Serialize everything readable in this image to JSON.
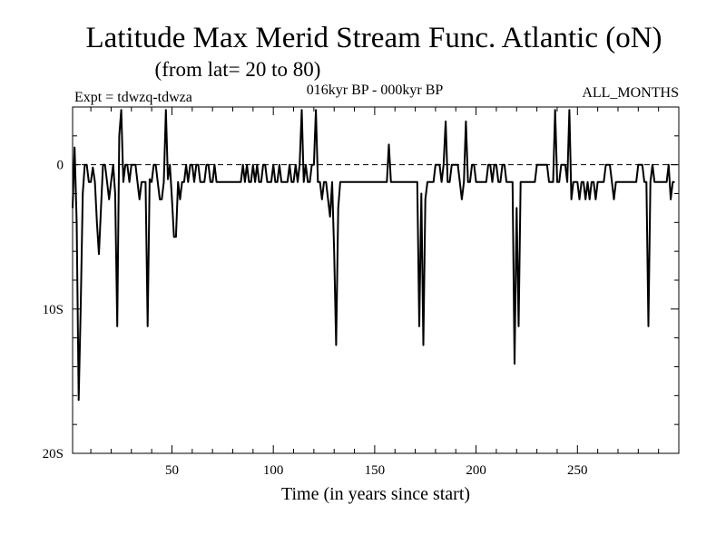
{
  "chart_data": {
    "type": "line",
    "title": "Latitude Max Merid Stream Func. Atlantic (oN)",
    "subtitle": "(from lat= 20 to 80)",
    "annotations": {
      "left": "Expt = tdwzq-tdwza",
      "center": "016kyr BP - 000kyr BP",
      "right": "ALL_MONTHS"
    },
    "xlabel": "Time (in years since start)",
    "ylabel": "",
    "xlim": [
      1,
      300
    ],
    "ylim": [
      -20,
      4
    ],
    "x_ticks": [
      50,
      100,
      150,
      200,
      250
    ],
    "x_tick_labels": [
      "50",
      "100",
      "150",
      "200",
      "250"
    ],
    "y_ticks": [
      0,
      -10,
      -20
    ],
    "y_tick_labels": [
      "0",
      "10S",
      "20S"
    ],
    "reference_line": 0,
    "grid": false,
    "series": [
      {
        "color": "#000000",
        "points": [
          [
            1,
            -3
          ],
          [
            2,
            1.2
          ],
          [
            3,
            -4
          ],
          [
            4,
            -16.3
          ],
          [
            5,
            -10
          ],
          [
            6,
            -2
          ],
          [
            7,
            0
          ],
          [
            8,
            0
          ],
          [
            9,
            -1.2
          ],
          [
            10,
            -1.2
          ],
          [
            11,
            -0.2
          ],
          [
            12,
            -1.2
          ],
          [
            13,
            -4
          ],
          [
            14,
            -6.2
          ],
          [
            15,
            -3
          ],
          [
            16,
            0
          ],
          [
            17,
            0
          ],
          [
            18,
            -1.2
          ],
          [
            19,
            -2.4
          ],
          [
            20,
            -1.2
          ],
          [
            21,
            0
          ],
          [
            22,
            -2
          ],
          [
            23,
            -11.2
          ],
          [
            24,
            2
          ],
          [
            25,
            3.8
          ],
          [
            26,
            -1.2
          ],
          [
            27,
            0
          ],
          [
            28,
            0
          ],
          [
            29,
            -1.2
          ],
          [
            30,
            0
          ],
          [
            31,
            0
          ],
          [
            32,
            0
          ],
          [
            33,
            -1.2
          ],
          [
            34,
            -2.4
          ],
          [
            35,
            -1.2
          ],
          [
            36,
            -1.2
          ],
          [
            37,
            -1.2
          ],
          [
            38,
            -11.2
          ],
          [
            39,
            -1
          ],
          [
            40,
            -1.2
          ],
          [
            41,
            0
          ],
          [
            42,
            0
          ],
          [
            43,
            -1.2
          ],
          [
            44,
            -2.4
          ],
          [
            45,
            -2.4
          ],
          [
            46,
            -1.2
          ],
          [
            47,
            3.8
          ],
          [
            48,
            -1
          ],
          [
            49,
            0
          ],
          [
            50,
            -2.4
          ],
          [
            51,
            -5
          ],
          [
            52,
            -5
          ],
          [
            53,
            -1.2
          ],
          [
            54,
            -2.4
          ],
          [
            55,
            -1.2
          ],
          [
            56,
            -1.2
          ],
          [
            57,
            0
          ],
          [
            58,
            -1.2
          ],
          [
            59,
            0
          ],
          [
            60,
            0
          ],
          [
            61,
            -1.2
          ],
          [
            62,
            0
          ],
          [
            63,
            0
          ],
          [
            64,
            -1.2
          ],
          [
            65,
            -1.2
          ],
          [
            66,
            -1.2
          ],
          [
            67,
            0
          ],
          [
            68,
            0
          ],
          [
            69,
            -1.2
          ],
          [
            70,
            -1.2
          ],
          [
            71,
            0
          ],
          [
            72,
            -1.2
          ],
          [
            73,
            -1.2
          ],
          [
            74,
            -1.2
          ],
          [
            75,
            -1.2
          ],
          [
            76,
            -1.2
          ],
          [
            77,
            -1.2
          ],
          [
            78,
            -1.2
          ],
          [
            79,
            -1.2
          ],
          [
            80,
            -1.2
          ],
          [
            81,
            -1.2
          ],
          [
            82,
            -1.2
          ],
          [
            83,
            -1.2
          ],
          [
            84,
            -1.2
          ],
          [
            85,
            0
          ],
          [
            86,
            -1.2
          ],
          [
            87,
            0
          ],
          [
            88,
            -1.2
          ],
          [
            89,
            -1.2
          ],
          [
            90,
            0
          ],
          [
            91,
            -1.2
          ],
          [
            92,
            0
          ],
          [
            93,
            -1.2
          ],
          [
            94,
            -1.2
          ],
          [
            95,
            0
          ],
          [
            96,
            0
          ],
          [
            97,
            -1.2
          ],
          [
            98,
            -1.2
          ],
          [
            99,
            -1.2
          ],
          [
            100,
            0
          ],
          [
            101,
            -1.2
          ],
          [
            102,
            -1.2
          ],
          [
            103,
            0
          ],
          [
            104,
            -1.2
          ],
          [
            105,
            -1.2
          ],
          [
            106,
            -1.2
          ],
          [
            107,
            -1.2
          ],
          [
            108,
            0
          ],
          [
            109,
            -1.2
          ],
          [
            110,
            -1.2
          ],
          [
            111,
            0
          ],
          [
            112,
            -1.2
          ],
          [
            113,
            0
          ],
          [
            114,
            3.8
          ],
          [
            115,
            -1.2
          ],
          [
            116,
            0
          ],
          [
            117,
            -1.2
          ],
          [
            118,
            -1.2
          ],
          [
            119,
            0
          ],
          [
            120,
            0
          ],
          [
            121,
            3.8
          ],
          [
            122,
            -1.2
          ],
          [
            123,
            -1.2
          ],
          [
            124,
            -2.4
          ],
          [
            125,
            -1.2
          ],
          [
            126,
            -1.2
          ],
          [
            127,
            -2.4
          ],
          [
            128,
            -3.6
          ],
          [
            129,
            -1.2
          ],
          [
            130,
            -6
          ],
          [
            131,
            -12.5
          ],
          [
            132,
            -3
          ],
          [
            133,
            -1.2
          ],
          [
            134,
            -1.2
          ],
          [
            135,
            -1.2
          ],
          [
            136,
            -1.2
          ],
          [
            137,
            -1.2
          ],
          [
            138,
            -1.2
          ],
          [
            139,
            -1.2
          ],
          [
            140,
            -1.2
          ],
          [
            141,
            -1.2
          ],
          [
            142,
            -1.2
          ],
          [
            143,
            -1.2
          ],
          [
            144,
            -1.2
          ],
          [
            145,
            -1.2
          ],
          [
            146,
            -1.2
          ],
          [
            147,
            -1.2
          ],
          [
            148,
            -1.2
          ],
          [
            149,
            -1.2
          ],
          [
            150,
            -1.2
          ],
          [
            151,
            -1.2
          ],
          [
            152,
            -1.2
          ],
          [
            153,
            -1.2
          ],
          [
            154,
            -1.2
          ],
          [
            155,
            -1.2
          ],
          [
            156,
            -1.2
          ],
          [
            157,
            1.4
          ],
          [
            158,
            -1.2
          ],
          [
            159,
            -1.2
          ],
          [
            160,
            -1.2
          ],
          [
            161,
            -1.2
          ],
          [
            162,
            -1.2
          ],
          [
            163,
            -1.2
          ],
          [
            164,
            -1.2
          ],
          [
            165,
            -1.2
          ],
          [
            166,
            -1.2
          ],
          [
            167,
            -1.2
          ],
          [
            168,
            -1.2
          ],
          [
            169,
            -1.2
          ],
          [
            170,
            -1.2
          ],
          [
            171,
            -1.2
          ],
          [
            172,
            -11.2
          ],
          [
            173,
            -2
          ],
          [
            174,
            -12.5
          ],
          [
            175,
            -2.4
          ],
          [
            176,
            -1.2
          ],
          [
            177,
            -1.2
          ],
          [
            178,
            -1.2
          ],
          [
            179,
            -1.2
          ],
          [
            180,
            0
          ],
          [
            181,
            0
          ],
          [
            182,
            0
          ],
          [
            183,
            -1.2
          ],
          [
            184,
            0
          ],
          [
            185,
            3
          ],
          [
            186,
            -1.2
          ],
          [
            187,
            -1.2
          ],
          [
            188,
            0
          ],
          [
            189,
            0
          ],
          [
            190,
            0
          ],
          [
            191,
            0
          ],
          [
            192,
            -1.2
          ],
          [
            193,
            -2.4
          ],
          [
            194,
            -1.2
          ],
          [
            195,
            3
          ],
          [
            196,
            -1.2
          ],
          [
            197,
            -1.2
          ],
          [
            198,
            0
          ],
          [
            199,
            0
          ],
          [
            200,
            -1.2
          ],
          [
            201,
            -1.2
          ],
          [
            202,
            -1.2
          ],
          [
            203,
            -1.2
          ],
          [
            204,
            -1.2
          ],
          [
            205,
            -1.2
          ],
          [
            206,
            0
          ],
          [
            207,
            0
          ],
          [
            208,
            -1.2
          ],
          [
            209,
            0
          ],
          [
            210,
            0
          ],
          [
            211,
            -1.2
          ],
          [
            212,
            -1.2
          ],
          [
            213,
            0
          ],
          [
            214,
            0
          ],
          [
            215,
            -1.2
          ],
          [
            216,
            -1.2
          ],
          [
            217,
            -1.2
          ],
          [
            218,
            -1.2
          ],
          [
            219,
            -13.8
          ],
          [
            220,
            -3
          ],
          [
            221,
            -11.2
          ],
          [
            222,
            -1.2
          ],
          [
            223,
            -1.2
          ],
          [
            224,
            -1.2
          ],
          [
            225,
            -1.2
          ],
          [
            226,
            -1.2
          ],
          [
            227,
            -1.2
          ],
          [
            228,
            -1.2
          ],
          [
            229,
            -1.2
          ],
          [
            230,
            0
          ],
          [
            231,
            0
          ],
          [
            232,
            0
          ],
          [
            233,
            0
          ],
          [
            234,
            0
          ],
          [
            235,
            0
          ],
          [
            236,
            -1.2
          ],
          [
            237,
            -1.2
          ],
          [
            238,
            -1.2
          ],
          [
            239,
            3.8
          ],
          [
            240,
            -1.2
          ],
          [
            241,
            -1.2
          ],
          [
            242,
            0
          ],
          [
            243,
            0
          ],
          [
            244,
            0
          ],
          [
            245,
            -1.2
          ],
          [
            246,
            3.8
          ],
          [
            247,
            -2.4
          ],
          [
            248,
            -1.2
          ],
          [
            249,
            -1.2
          ],
          [
            250,
            -1.2
          ],
          [
            251,
            -2.4
          ],
          [
            252,
            -1.2
          ],
          [
            253,
            -1.2
          ],
          [
            254,
            -2.4
          ],
          [
            255,
            -1.2
          ],
          [
            256,
            -2.4
          ],
          [
            257,
            -1.2
          ],
          [
            258,
            -1.2
          ],
          [
            259,
            -2.4
          ],
          [
            260,
            -1.2
          ],
          [
            261,
            -1.2
          ],
          [
            262,
            -1.2
          ],
          [
            263,
            -1.2
          ],
          [
            264,
            0
          ],
          [
            265,
            0
          ],
          [
            266,
            0
          ],
          [
            267,
            -1.2
          ],
          [
            268,
            -2.4
          ],
          [
            269,
            -1.2
          ],
          [
            270,
            -1.2
          ],
          [
            271,
            -1.2
          ],
          [
            272,
            -1.2
          ],
          [
            273,
            -1.2
          ],
          [
            274,
            -1.2
          ],
          [
            275,
            -1.2
          ],
          [
            276,
            -1.2
          ],
          [
            277,
            -1.2
          ],
          [
            278,
            -1.2
          ],
          [
            279,
            -1.2
          ],
          [
            280,
            0
          ],
          [
            281,
            0
          ],
          [
            282,
            0
          ],
          [
            283,
            -1.2
          ],
          [
            284,
            -1.2
          ],
          [
            285,
            -11.2
          ],
          [
            286,
            -1.2
          ],
          [
            287,
            0
          ],
          [
            288,
            -1.2
          ],
          [
            289,
            -1.2
          ],
          [
            290,
            -1.2
          ],
          [
            291,
            -1.2
          ],
          [
            292,
            -1.2
          ],
          [
            293,
            -1.2
          ],
          [
            294,
            -1.2
          ],
          [
            295,
            0
          ],
          [
            296,
            -2.4
          ],
          [
            297,
            -1.2
          ],
          [
            298,
            -1.2
          ]
        ]
      }
    ]
  }
}
